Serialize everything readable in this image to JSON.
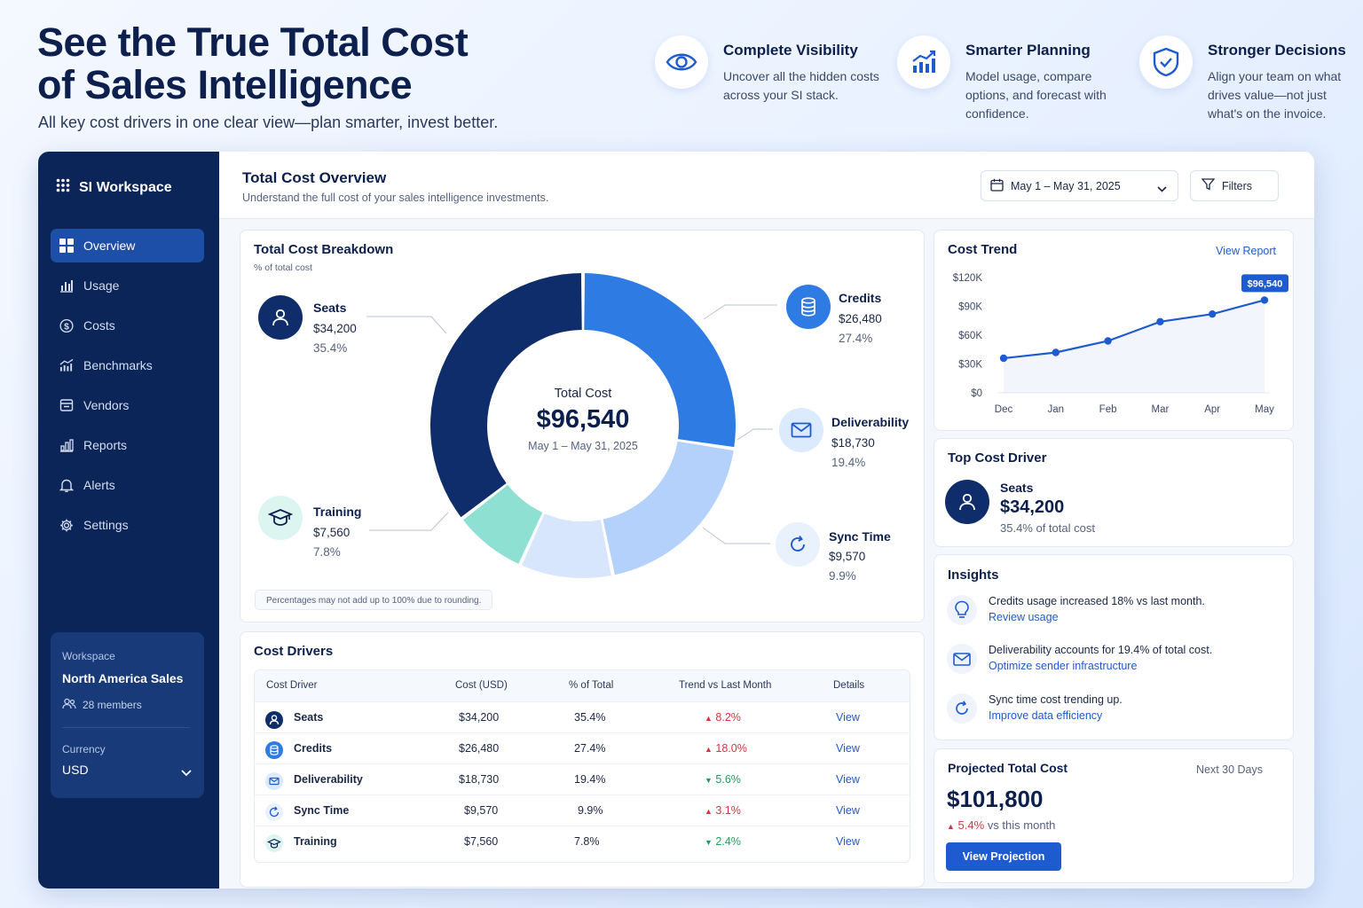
{
  "hero": {
    "title_line1": "See the True Total Cost",
    "title_line2": "of Sales Intelligence",
    "subtitle": "All key cost drivers in one clear view—plan smarter, invest better."
  },
  "features": [
    {
      "icon": "eye-icon",
      "title": "Complete Visibility",
      "desc": "Uncover all the hidden costs across your SI stack."
    },
    {
      "icon": "trend-chart-icon",
      "title": "Smarter Planning",
      "desc": "Model usage, compare options, and forecast with confidence."
    },
    {
      "icon": "shield-check-icon",
      "title": "Stronger Decisions",
      "desc": "Align your team on what drives value—not just what's on the invoice."
    }
  ],
  "sidebar": {
    "brand": "SI Workspace",
    "items": [
      {
        "label": "Overview",
        "icon": "grid-icon",
        "active": true
      },
      {
        "label": "Usage",
        "icon": "bar-chart-icon"
      },
      {
        "label": "Costs",
        "icon": "dollar-icon"
      },
      {
        "label": "Benchmarks",
        "icon": "benchmark-icon"
      },
      {
        "label": "Vendors",
        "icon": "vendor-icon"
      },
      {
        "label": "Reports",
        "icon": "report-icon"
      },
      {
        "label": "Alerts",
        "icon": "bell-icon"
      },
      {
        "label": "Settings",
        "icon": "gear-icon"
      }
    ],
    "workspace_label": "Workspace",
    "workspace_name": "North America Sales",
    "members": "28 members",
    "currency_label": "Currency",
    "currency_value": "USD"
  },
  "topbar": {
    "title": "Total Cost Overview",
    "subtitle": "Understand the full cost of your sales intelligence investments.",
    "date_range": "May 1 – May 31, 2025",
    "filters": "Filters"
  },
  "breakdown": {
    "title": "Total Cost Breakdown",
    "subtitle": "% of total cost",
    "center_label": "Total Cost",
    "center_value": "$96,540",
    "center_date": "May 1 – May 31, 2025",
    "note": "Percentages may not add up to 100% due to rounding.",
    "segments": [
      {
        "name": "Seats",
        "value": "$34,200",
        "pct": "35.4%"
      },
      {
        "name": "Credits",
        "value": "$26,480",
        "pct": "27.4%"
      },
      {
        "name": "Deliverability",
        "value": "$18,730",
        "pct": "19.4%"
      },
      {
        "name": "Sync Time",
        "value": "$9,570",
        "pct": "9.9%"
      },
      {
        "name": "Training",
        "value": "$7,560",
        "pct": "7.8%"
      }
    ]
  },
  "chart_data": {
    "type": "line",
    "title": "Cost Trend",
    "x": [
      "Dec",
      "Jan",
      "Feb",
      "Mar",
      "Apr",
      "May"
    ],
    "series": [
      {
        "values": [
          36000,
          42000,
          54000,
          74000,
          82000,
          96540
        ]
      }
    ],
    "yticks": [
      "$120K",
      "$90K",
      "$60K",
      "$30K",
      "$0"
    ],
    "ylim": [
      0,
      120000
    ],
    "annotation": "$96,540",
    "grid": false,
    "color": "#1f5bd0"
  },
  "trend": {
    "title": "Cost Trend",
    "link": "View Report"
  },
  "top_driver": {
    "title": "Top Cost Driver",
    "name": "Seats",
    "value": "$34,200",
    "pct": "35.4% of total cost"
  },
  "insights": {
    "title": "Insights",
    "items": [
      {
        "icon": "lightbulb-icon",
        "text": "Credits usage increased 18% vs last month.",
        "link": "Review usage"
      },
      {
        "icon": "mail-icon",
        "text": "Deliverability accounts for 19.4% of total cost.",
        "link": "Optimize sender infrastructure"
      },
      {
        "icon": "sync-icon",
        "text": "Sync time cost trending up.",
        "link": "Improve data efficiency"
      }
    ]
  },
  "projection": {
    "title": "Projected Total Cost",
    "period": "Next 30 Days",
    "value": "$101,800",
    "delta": "5.4%",
    "delta_suffix": "vs this month",
    "button": "View Projection"
  },
  "drivers": {
    "title": "Cost Drivers",
    "headers": [
      "Cost Driver",
      "Cost (USD)",
      "% of Total",
      "Trend vs Last Month",
      "Details"
    ],
    "rows": [
      {
        "name": "Seats",
        "cost": "$34,200",
        "pct": "35.4%",
        "trend": "8.2%",
        "dir": "up",
        "details": "View"
      },
      {
        "name": "Credits",
        "cost": "$26,480",
        "pct": "27.4%",
        "trend": "18.0%",
        "dir": "up",
        "details": "View"
      },
      {
        "name": "Deliverability",
        "cost": "$18,730",
        "pct": "19.4%",
        "trend": "5.6%",
        "dir": "down",
        "details": "View"
      },
      {
        "name": "Sync Time",
        "cost": "$9,570",
        "pct": "9.9%",
        "trend": "3.1%",
        "dir": "up",
        "details": "View"
      },
      {
        "name": "Training",
        "cost": "$7,560",
        "pct": "7.8%",
        "trend": "2.4%",
        "dir": "down",
        "details": "View"
      }
    ]
  },
  "colors": {
    "navy": "#0b2559",
    "primary": "#1f5bd0",
    "seats": "#0e2d6a",
    "credits": "#2f7be4",
    "deliverability": "#b3d1fa",
    "sync": "#d7e6fd",
    "training": "#8ee0d3",
    "up": "#d9333f",
    "down": "#20a05c"
  }
}
